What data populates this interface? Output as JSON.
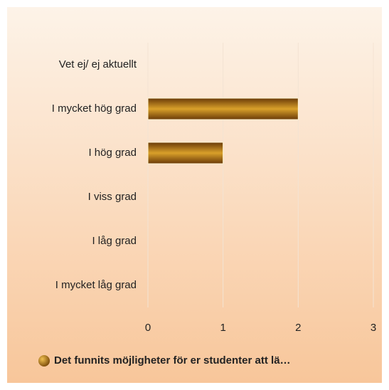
{
  "chart_data": {
    "type": "hbar",
    "categories": [
      "Vet ej/ ej aktuellt",
      "I mycket hög grad",
      "I hög grad",
      "I viss grad",
      "I låg grad",
      "I mycket låg grad"
    ],
    "series": [
      {
        "name": "Det funnits möjligheter för er studenter att lä…",
        "color": "#9a6a10",
        "values": [
          0,
          2,
          1,
          0,
          0,
          0
        ]
      }
    ],
    "xlim": [
      0,
      3
    ],
    "xticks": [
      0,
      1,
      2,
      3
    ],
    "grid": true,
    "legend": "bottom"
  }
}
